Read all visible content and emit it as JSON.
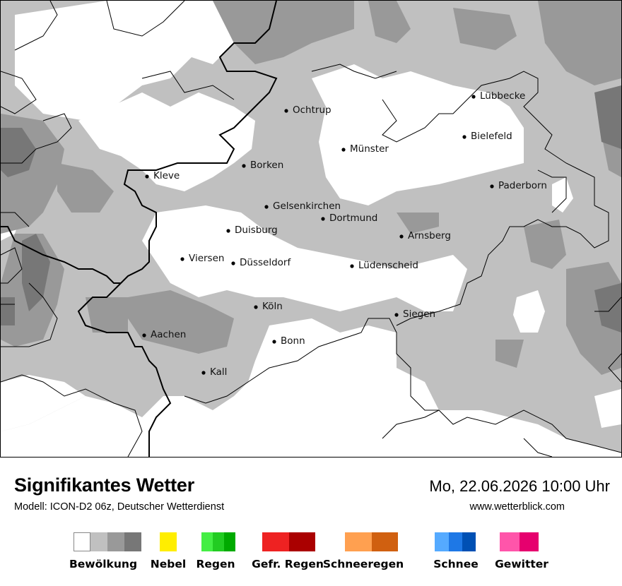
{
  "map": {
    "cities": [
      {
        "name": "Lübbecke"
      },
      {
        "name": "Ochtrup"
      },
      {
        "name": "Bielefeld"
      },
      {
        "name": "Münster"
      },
      {
        "name": "Borken"
      },
      {
        "name": "Kleve"
      },
      {
        "name": "Paderborn"
      },
      {
        "name": "Gelsenkirchen"
      },
      {
        "name": "Dortmund"
      },
      {
        "name": "Duisburg"
      },
      {
        "name": "Arnsberg"
      },
      {
        "name": "Viersen"
      },
      {
        "name": "Düsseldorf"
      },
      {
        "name": "Lüdenscheid"
      },
      {
        "name": "Köln"
      },
      {
        "name": "Siegen"
      },
      {
        "name": "Aachen"
      },
      {
        "name": "Bonn"
      },
      {
        "name": "Kall"
      }
    ]
  },
  "footer": {
    "title": "Signifikantes Wetter",
    "subtitle": "Modell: ICON-D2 06z, Deutscher Wetterdienst",
    "datetime": "Mo, 22.06.2026 10:00 Uhr",
    "website": "www.wetterblick.com"
  },
  "legend": [
    {
      "label": "Bewölkung",
      "colors": [
        "#ffffff",
        "#c0c0c0",
        "#999999",
        "#777777"
      ]
    },
    {
      "label": "Nebel",
      "colors": [
        "#ffee00"
      ]
    },
    {
      "label": "Regen",
      "colors": [
        "#44ee44",
        "#22cc22",
        "#00aa00"
      ]
    },
    {
      "label": "Gefr. Regen",
      "colors": [
        "#ee2222",
        "#aa0000"
      ]
    },
    {
      "label": "Schneeregen",
      "colors": [
        "#ffa050",
        "#d06010"
      ]
    },
    {
      "label": "Schnee",
      "colors": [
        "#55aaff",
        "#1e78e6",
        "#0050b4"
      ]
    },
    {
      "label": "Gewitter",
      "colors": [
        "#ff55aa",
        "#e6006e"
      ]
    }
  ]
}
